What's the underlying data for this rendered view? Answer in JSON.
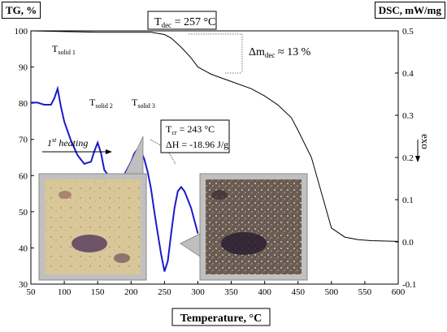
{
  "chart_data": {
    "type": "line",
    "xlabel": "Temperature, °C",
    "ylabel_left": "TG, %",
    "ylabel_right": "DSC, mW/mg",
    "exo_label": "exo",
    "xlim": [
      50,
      600
    ],
    "ylim_left": [
      30,
      100
    ],
    "ylim_right": [
      -0.1,
      0.5
    ],
    "x_ticks": [
      50,
      100,
      150,
      200,
      250,
      300,
      350,
      400,
      450,
      500,
      550,
      600
    ],
    "y_ticks_left": [
      30,
      40,
      50,
      60,
      70,
      80,
      90,
      100
    ],
    "y_ticks_right": [
      "-0.1",
      "0.0",
      "0.1",
      "0.2",
      "0.3",
      "0.4",
      "0.5"
    ],
    "series": [
      {
        "axis": "left",
        "color": "#000000",
        "x": [
          50,
          100,
          150,
          200,
          230,
          250,
          260,
          275,
          290,
          300,
          320,
          350,
          380,
          400,
          420,
          440,
          450,
          470,
          490,
          500,
          520,
          540,
          560,
          600
        ],
        "y": [
          100,
          99.8,
          99.6,
          99.6,
          99.6,
          99.0,
          98.0,
          95.5,
          92.5,
          90.0,
          88.0,
          86.0,
          84.0,
          82.0,
          79.5,
          76.0,
          72.5,
          65.0,
          52.0,
          45.5,
          43.0,
          42.3,
          42.0,
          41.8
        ]
      },
      {
        "axis": "right",
        "color": "#1a1acc",
        "x": [
          50,
          60,
          70,
          80,
          85,
          90,
          95,
          100,
          110,
          120,
          130,
          140,
          145,
          150,
          155,
          160,
          170,
          180,
          190,
          200,
          205,
          210,
          215,
          220,
          225,
          230,
          235,
          240,
          245,
          250,
          255,
          260,
          265,
          270,
          275,
          280,
          285,
          290,
          295,
          300
        ],
        "y": [
          0.33,
          0.33,
          0.325,
          0.325,
          0.34,
          0.363,
          0.32,
          0.285,
          0.24,
          0.205,
          0.185,
          0.19,
          0.215,
          0.235,
          0.21,
          0.17,
          0.15,
          0.15,
          0.16,
          0.19,
          0.21,
          0.22,
          0.215,
          0.195,
          0.165,
          0.125,
          0.07,
          0.02,
          -0.03,
          -0.07,
          -0.045,
          0.02,
          0.08,
          0.12,
          0.13,
          0.12,
          0.1,
          0.08,
          0.05,
          0.02
        ]
      }
    ],
    "annotations": {
      "tdec": {
        "label": "T",
        "sub": "dec",
        "value": " = 257 °C"
      },
      "mass": {
        "label": "Δm",
        "sub": "dec",
        "value": " ≈ 13 %"
      },
      "solid1": {
        "label": "T",
        "sub": "solid 1"
      },
      "solid2": {
        "label": "T",
        "sub": "solid 2"
      },
      "solid3": {
        "label": "T",
        "sub": "solid 3"
      },
      "tcr": {
        "label": "T",
        "sub": "cr",
        "value": " = 243 °C"
      },
      "dh": {
        "label": "ΔH = -18.96 J/g"
      },
      "heating": {
        "sup_base": "1",
        "sup": "st",
        "rest": " heating"
      }
    }
  }
}
